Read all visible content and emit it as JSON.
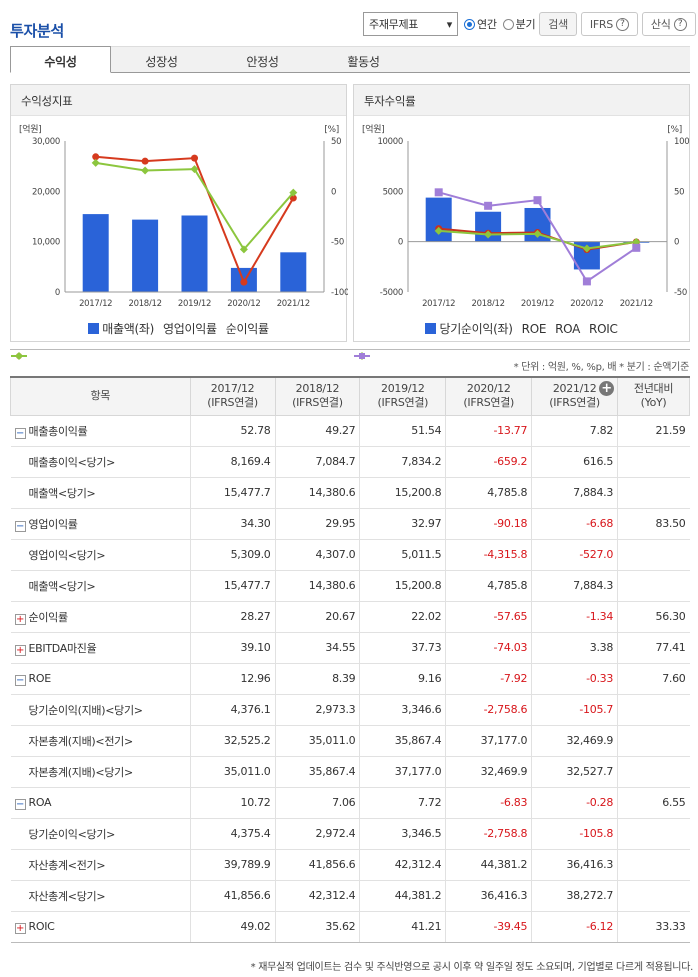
{
  "title": "투자분석",
  "controls": {
    "select_value": "주재무제표",
    "radio_annual": "연간",
    "radio_quarter": "분기",
    "search": "검색",
    "ifrs": "IFRS",
    "formula": "산식"
  },
  "tabs": [
    "수익성",
    "성장성",
    "안정성",
    "활동성"
  ],
  "panel1": {
    "title": "수익성지표",
    "left_unit": "[억원]",
    "right_unit": "[%]",
    "legend": [
      "매출액(좌)",
      "영업이익률",
      "순이익률"
    ]
  },
  "panel2": {
    "title": "투자수익률",
    "left_unit": "[억원]",
    "right_unit": "[%]",
    "legend": [
      "당기순이익(좌)",
      "ROE",
      "ROA",
      "ROIC"
    ]
  },
  "chart_data": [
    {
      "type": "bar",
      "title": "수익성지표",
      "categories": [
        "2017/12",
        "2018/12",
        "2019/12",
        "2020/12",
        "2021/12"
      ],
      "left_ticks": [
        "30,000",
        "20,000",
        "10,000",
        "0"
      ],
      "right_ticks": [
        "50",
        "0",
        "-50",
        "-100"
      ],
      "ylim_left": [
        0,
        30000
      ],
      "ylim_right": [
        -100,
        50
      ],
      "series": [
        {
          "name": "매출액(좌)",
          "axis": "left",
          "type": "bar",
          "color": "#2a63d8",
          "values": [
            15477.7,
            14380.6,
            15200.8,
            4785.8,
            7884.3
          ]
        },
        {
          "name": "영업이익률",
          "axis": "right",
          "type": "line",
          "color": "#d63a1e",
          "values": [
            34.3,
            29.95,
            32.97,
            -90.18,
            -6.68
          ]
        },
        {
          "name": "순이익률",
          "axis": "right",
          "type": "line",
          "color": "#8cc63e",
          "values": [
            28.27,
            20.67,
            22.02,
            -57.65,
            -1.34
          ]
        }
      ]
    },
    {
      "type": "bar",
      "title": "투자수익률",
      "categories": [
        "2017/12",
        "2018/12",
        "2019/12",
        "2020/12",
        "2021/12"
      ],
      "left_ticks": [
        "10000",
        "5000",
        "0",
        "-5000"
      ],
      "right_ticks": [
        "100",
        "50",
        "0",
        "-50"
      ],
      "ylim_left": [
        -5000,
        10000
      ],
      "ylim_right": [
        -50,
        100
      ],
      "series": [
        {
          "name": "당기순이익(좌)",
          "axis": "left",
          "type": "bar",
          "color": "#2a63d8",
          "values": [
            4376.1,
            2973.3,
            3346.6,
            -2758.6,
            -105.7
          ]
        },
        {
          "name": "ROE",
          "axis": "right",
          "type": "line",
          "color": "#c8321e",
          "values": [
            12.96,
            8.39,
            9.16,
            -7.92,
            -0.33
          ]
        },
        {
          "name": "ROA",
          "axis": "right",
          "type": "line",
          "color": "#8cc63e",
          "values": [
            10.72,
            7.06,
            7.72,
            -6.83,
            -0.28
          ]
        },
        {
          "name": "ROIC",
          "axis": "right",
          "type": "line",
          "color": "#a07ed8",
          "values": [
            49.02,
            35.62,
            41.21,
            -39.45,
            -6.12
          ]
        }
      ]
    }
  ],
  "note_unit": "* 단위 : 억원, %, %p, 배   * 분기 : 순액기준",
  "table": {
    "headers": [
      "항목",
      "2017/12\n(IFRS연결)",
      "2018/12\n(IFRS연결)",
      "2019/12\n(IFRS연결)",
      "2020/12\n(IFRS연결)",
      "2021/12\n(IFRS연결)",
      "전년대비\n(YoY)"
    ],
    "rows": [
      {
        "label": "매출총이익률",
        "icon": "minus",
        "cells": [
          "52.78",
          "49.27",
          "51.54",
          "-13.77",
          "7.82",
          "21.59"
        ]
      },
      {
        "label": "매출총이익<당기>",
        "sub": true,
        "cells": [
          "8,169.4",
          "7,084.7",
          "7,834.2",
          "-659.2",
          "616.5",
          ""
        ]
      },
      {
        "label": "매출액<당기>",
        "sub": true,
        "cells": [
          "15,477.7",
          "14,380.6",
          "15,200.8",
          "4,785.8",
          "7,884.3",
          ""
        ]
      },
      {
        "label": "영업이익률",
        "icon": "minus",
        "cells": [
          "34.30",
          "29.95",
          "32.97",
          "-90.18",
          "-6.68",
          "83.50"
        ]
      },
      {
        "label": "영업이익<당기>",
        "sub": true,
        "cells": [
          "5,309.0",
          "4,307.0",
          "5,011.5",
          "-4,315.8",
          "-527.0",
          ""
        ]
      },
      {
        "label": "매출액<당기>",
        "sub": true,
        "cells": [
          "15,477.7",
          "14,380.6",
          "15,200.8",
          "4,785.8",
          "7,884.3",
          ""
        ]
      },
      {
        "label": "순이익률",
        "icon": "plus",
        "cells": [
          "28.27",
          "20.67",
          "22.02",
          "-57.65",
          "-1.34",
          "56.30"
        ]
      },
      {
        "label": "EBITDA마진율",
        "icon": "plus",
        "cells": [
          "39.10",
          "34.55",
          "37.73",
          "-74.03",
          "3.38",
          "77.41"
        ]
      },
      {
        "label": "ROE",
        "icon": "minus",
        "cells": [
          "12.96",
          "8.39",
          "9.16",
          "-7.92",
          "-0.33",
          "7.60"
        ]
      },
      {
        "label": "당기순이익(지배)<당기>",
        "sub": true,
        "cells": [
          "4,376.1",
          "2,973.3",
          "3,346.6",
          "-2,758.6",
          "-105.7",
          ""
        ]
      },
      {
        "label": "자본총계(지배)<전기>",
        "sub": true,
        "cells": [
          "32,525.2",
          "35,011.0",
          "35,867.4",
          "37,177.0",
          "32,469.9",
          ""
        ]
      },
      {
        "label": "자본총계(지배)<당기>",
        "sub": true,
        "cells": [
          "35,011.0",
          "35,867.4",
          "37,177.0",
          "32,469.9",
          "32,527.7",
          ""
        ]
      },
      {
        "label": "ROA",
        "icon": "minus",
        "cells": [
          "10.72",
          "7.06",
          "7.72",
          "-6.83",
          "-0.28",
          "6.55"
        ]
      },
      {
        "label": "당기순이익<당기>",
        "sub": true,
        "cells": [
          "4,375.4",
          "2,972.4",
          "3,346.5",
          "-2,758.8",
          "-105.8",
          ""
        ]
      },
      {
        "label": "자산총계<전기>",
        "sub": true,
        "cells": [
          "39,789.9",
          "41,856.6",
          "42,312.4",
          "44,381.2",
          "36,416.3",
          ""
        ]
      },
      {
        "label": "자산총계<당기>",
        "sub": true,
        "cells": [
          "41,856.6",
          "42,312.4",
          "44,381.2",
          "36,416.3",
          "38,272.7",
          ""
        ]
      },
      {
        "label": "ROIC",
        "icon": "plus",
        "cells": [
          "49.02",
          "35.62",
          "41.21",
          "-39.45",
          "-6.12",
          "33.33"
        ]
      }
    ]
  },
  "note_bottom": "* 재무실적 업데이트는 검수 및 주식반영으로 공시 이후 약 일주일 정도 소요되며, 기업별로 다르게 적용됩니다."
}
